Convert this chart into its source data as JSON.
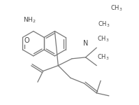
{
  "bg_color": "#ffffff",
  "line_color": "#777777",
  "text_color": "#444444",
  "figsize": [
    1.99,
    1.5
  ],
  "dpi": 100
}
